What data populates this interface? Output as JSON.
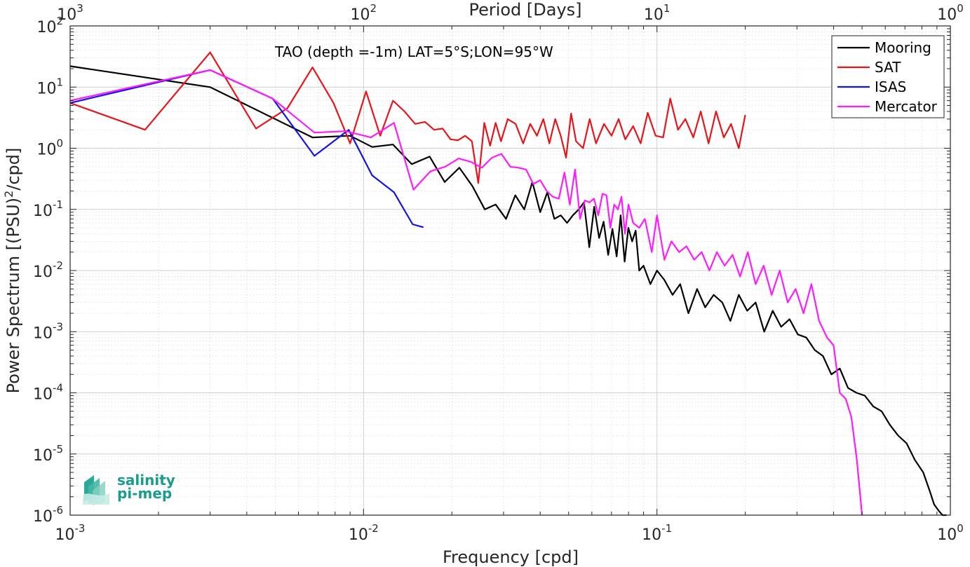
{
  "chart_data": {
    "type": "line",
    "title": "",
    "annotation": "TAO (depth =-1m) LAT=5°S;LON=95°W",
    "xlabel": "Frequency [cpd]",
    "ylabel": "Power Spectrum [(PSU)",
    "ylabel_sup": "2",
    "ylabel_tail": "/cpd]",
    "top_axis_label": "Period [Days]",
    "x_scale": "log",
    "y_scale": "log",
    "xlim": [
      0.001,
      1
    ],
    "ylim": [
      1e-06,
      100
    ],
    "grid": true,
    "minor_grid": true,
    "legend_position": "top-right",
    "x_ticks": [
      {
        "base": "10",
        "exp": "-3"
      },
      {
        "base": "10",
        "exp": "-2"
      },
      {
        "base": "10",
        "exp": "-1"
      },
      {
        "base": "10",
        "exp": "0"
      }
    ],
    "top_ticks": [
      {
        "base": "10",
        "exp": "3"
      },
      {
        "base": "10",
        "exp": "2"
      },
      {
        "base": "10",
        "exp": "1"
      },
      {
        "base": "10",
        "exp": "0"
      }
    ],
    "y_ticks": [
      {
        "base": "10",
        "exp": "-6"
      },
      {
        "base": "10",
        "exp": "-5"
      },
      {
        "base": "10",
        "exp": "-4"
      },
      {
        "base": "10",
        "exp": "-3"
      },
      {
        "base": "10",
        "exp": "-2"
      },
      {
        "base": "10",
        "exp": "-1"
      },
      {
        "base": "10",
        "exp": "0"
      },
      {
        "base": "10",
        "exp": "1"
      },
      {
        "base": "10",
        "exp": "2"
      }
    ],
    "series": [
      {
        "name": "Mooring",
        "color": "#000000",
        "x": [
          0.001,
          0.003,
          0.0067,
          0.009,
          0.0107,
          0.0126,
          0.0146,
          0.0168,
          0.0189,
          0.0212,
          0.0235,
          0.0259,
          0.0282,
          0.0306,
          0.0329,
          0.0353,
          0.0376,
          0.04,
          0.0423,
          0.0447,
          0.047,
          0.0494,
          0.0517,
          0.0541,
          0.0564,
          0.0588,
          0.0611,
          0.0635,
          0.0658,
          0.0682,
          0.0705,
          0.0729,
          0.0752,
          0.0776,
          0.0799,
          0.0823,
          0.0846,
          0.087,
          0.09,
          0.095,
          0.1,
          0.106,
          0.113,
          0.12,
          0.128,
          0.137,
          0.146,
          0.156,
          0.167,
          0.178,
          0.19,
          0.203,
          0.217,
          0.232,
          0.248,
          0.265,
          0.283,
          0.302,
          0.323,
          0.345,
          0.368,
          0.393,
          0.42,
          0.448,
          0.479,
          0.511,
          0.546,
          0.583,
          0.622,
          0.664,
          0.709,
          0.757,
          0.808,
          0.85,
          0.88,
          0.91,
          0.94,
          0.97
        ],
        "y": [
          22,
          10,
          1.5,
          1.6,
          1.05,
          1.15,
          0.55,
          0.73,
          0.28,
          0.48,
          0.24,
          0.1,
          0.12,
          0.07,
          0.17,
          0.1,
          0.28,
          0.09,
          0.19,
          0.07,
          0.08,
          0.06,
          0.08,
          0.1,
          0.13,
          0.024,
          0.11,
          0.034,
          0.063,
          0.018,
          0.048,
          0.017,
          0.08,
          0.014,
          0.05,
          0.03,
          0.045,
          0.01,
          0.012,
          0.006,
          0.01,
          0.007,
          0.004,
          0.006,
          0.002,
          0.005,
          0.0025,
          0.004,
          0.003,
          0.0015,
          0.004,
          0.0022,
          0.003,
          0.001,
          0.0022,
          0.0012,
          0.0016,
          0.0009,
          0.0008,
          0.0005,
          0.0004,
          0.0002,
          0.00025,
          0.00012,
          0.0001,
          9e-05,
          6e-05,
          5e-05,
          3e-05,
          2e-05,
          1.5e-05,
          8e-06,
          5e-06,
          2.5e-06,
          1.5e-06,
          1.2e-06,
          1e-06,
          1e-06
        ]
      },
      {
        "name": "SAT",
        "color": "#e8141a",
        "x": [
          0.001,
          0.0018,
          0.003,
          0.0043,
          0.0055,
          0.0067,
          0.0079,
          0.009,
          0.0102,
          0.0114,
          0.0126,
          0.0138,
          0.015,
          0.0162,
          0.0174,
          0.0186,
          0.0198,
          0.021,
          0.0222,
          0.0234,
          0.0246,
          0.0258,
          0.027,
          0.0282,
          0.0294,
          0.031,
          0.033,
          0.035,
          0.037,
          0.039,
          0.041,
          0.043,
          0.045,
          0.047,
          0.049,
          0.051,
          0.053,
          0.056,
          0.059,
          0.062,
          0.066,
          0.07,
          0.074,
          0.078,
          0.083,
          0.088,
          0.093,
          0.099,
          0.105,
          0.111,
          0.118,
          0.125,
          0.133,
          0.141,
          0.15,
          0.159,
          0.169,
          0.179,
          0.19,
          0.2
        ],
        "y": [
          5.5,
          2,
          37,
          2.1,
          4.5,
          21,
          5.5,
          1.2,
          8.5,
          1.6,
          6,
          4,
          2.5,
          2.7,
          2,
          2.1,
          1.4,
          1.35,
          1.6,
          1.3,
          0.27,
          2.6,
          1.1,
          2.6,
          1.3,
          3,
          2.5,
          1.2,
          2.5,
          1.6,
          3,
          1.2,
          3,
          1.6,
          0.7,
          3.7,
          1.3,
          1,
          3,
          1.2,
          2.5,
          1.6,
          3,
          1.4,
          2.3,
          1.2,
          3.8,
          1.6,
          1.5,
          6.5,
          2,
          3,
          1.5,
          4,
          1.2,
          4,
          1.5,
          2.5,
          1,
          3.5
        ]
      },
      {
        "name": "ISAS",
        "color": "#1212e8",
        "x": [
          0.001,
          0.003,
          0.0049,
          0.0068,
          0.0089,
          0.0107,
          0.0127,
          0.0147,
          0.016
        ],
        "y": [
          5.5,
          19,
          6.5,
          0.75,
          2,
          0.36,
          0.19,
          0.057,
          0.051
        ]
      },
      {
        "name": "Mercator",
        "color": "#ff1aff",
        "x": [
          0.001,
          0.003,
          0.0049,
          0.0068,
          0.0087,
          0.0106,
          0.0127,
          0.0148,
          0.0169,
          0.019,
          0.0211,
          0.0232,
          0.0253,
          0.0274,
          0.0295,
          0.0316,
          0.0337,
          0.0358,
          0.0379,
          0.04,
          0.0421,
          0.0442,
          0.0463,
          0.0484,
          0.0505,
          0.0526,
          0.0547,
          0.0568,
          0.0589,
          0.061,
          0.0631,
          0.0652,
          0.0673,
          0.0694,
          0.0715,
          0.0736,
          0.0757,
          0.0778,
          0.08,
          0.083,
          0.087,
          0.091,
          0.096,
          0.1,
          0.106,
          0.112,
          0.119,
          0.126,
          0.134,
          0.142,
          0.151,
          0.16,
          0.17,
          0.181,
          0.192,
          0.204,
          0.217,
          0.231,
          0.246,
          0.262,
          0.279,
          0.297,
          0.316,
          0.336,
          0.357,
          0.38,
          0.4,
          0.42,
          0.44,
          0.46,
          0.48,
          0.5
        ],
        "y": [
          6,
          19,
          6.5,
          1.8,
          1.9,
          1.5,
          2.6,
          0.21,
          0.42,
          0.5,
          0.68,
          0.6,
          0.48,
          0.7,
          0.81,
          0.5,
          0.48,
          0.45,
          0.26,
          0.3,
          0.2,
          0.16,
          0.15,
          0.4,
          0.12,
          0.45,
          0.07,
          0.14,
          0.13,
          0.15,
          0.08,
          0.18,
          0.17,
          0.05,
          0.12,
          0.1,
          0.16,
          0.04,
          0.12,
          0.06,
          0.05,
          0.07,
          0.02,
          0.08,
          0.015,
          0.03,
          0.02,
          0.025,
          0.015,
          0.02,
          0.01,
          0.02,
          0.012,
          0.018,
          0.008,
          0.02,
          0.006,
          0.012,
          0.004,
          0.01,
          0.003,
          0.005,
          0.002,
          0.006,
          0.0015,
          0.0008,
          0.0006,
          0.0001,
          8e-05,
          4e-05,
          8e-06,
          1e-06
        ]
      }
    ]
  },
  "logo": {
    "line1": "salinity",
    "line2": "pi-mep"
  }
}
